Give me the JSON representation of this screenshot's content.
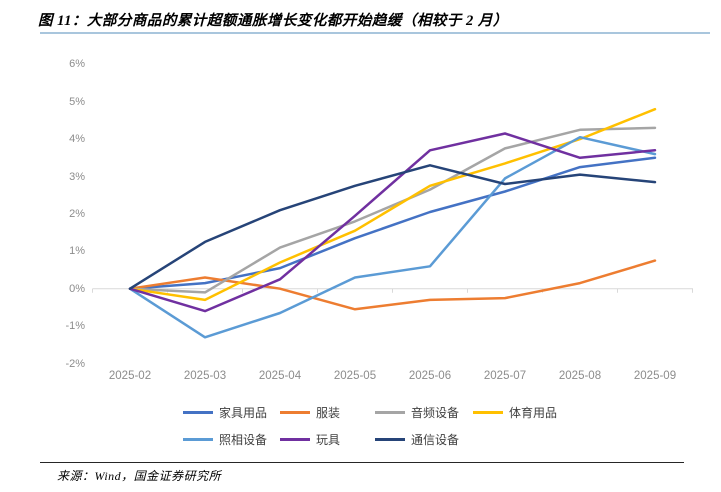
{
  "title": "图 11：大部分商品的累计超额通胀增长变化都开始趋缓（相较于 2 月）",
  "source": "来源：Wind，国金证券研究所",
  "chart_data": {
    "type": "line",
    "title": "",
    "xlabel": "",
    "ylabel": "",
    "x": [
      "2025-02",
      "2025-03",
      "2025-04",
      "2025-05",
      "2025-06",
      "2025-07",
      "2025-08",
      "2025-09"
    ],
    "ylim": [
      -2,
      6
    ],
    "ytick_values": [
      6,
      5,
      4,
      3,
      2,
      1,
      0,
      -1,
      -2
    ],
    "ytick_labels": [
      "6%",
      "5%",
      "4%",
      "3%",
      "2%",
      "1%",
      "0%",
      "-1%",
      "-2%"
    ],
    "grid": "zero-line-only",
    "zero_line_color": "#d9d9d9",
    "legend_position": "bottom",
    "series": [
      {
        "name": "家具用品",
        "color": "#4472C4",
        "values": [
          0,
          0.15,
          0.55,
          1.35,
          2.05,
          2.6,
          3.25,
          3.5
        ]
      },
      {
        "name": "服装",
        "color": "#ED7D31",
        "values": [
          0,
          0.3,
          0.0,
          -0.55,
          -0.3,
          -0.25,
          0.15,
          0.75
        ]
      },
      {
        "name": "音频设备",
        "color": "#A5A5A5",
        "values": [
          0,
          -0.1,
          1.1,
          1.8,
          2.65,
          3.75,
          4.25,
          4.3
        ]
      },
      {
        "name": "体育用品",
        "color": "#FFC000",
        "values": [
          0,
          -0.3,
          0.7,
          1.55,
          2.75,
          3.35,
          4.0,
          4.8
        ]
      },
      {
        "name": "照相设备",
        "color": "#5B9BD5",
        "values": [
          0,
          -1.3,
          -0.65,
          0.3,
          0.6,
          2.95,
          4.05,
          3.6
        ]
      },
      {
        "name": "玩具",
        "color": "#7030A0",
        "values": [
          0,
          -0.6,
          0.25,
          1.95,
          3.7,
          4.15,
          3.5,
          3.7
        ]
      },
      {
        "name": "通信设备",
        "color": "#264478",
        "values": [
          0,
          1.25,
          2.1,
          2.75,
          3.3,
          2.8,
          3.05,
          2.85
        ]
      }
    ]
  }
}
